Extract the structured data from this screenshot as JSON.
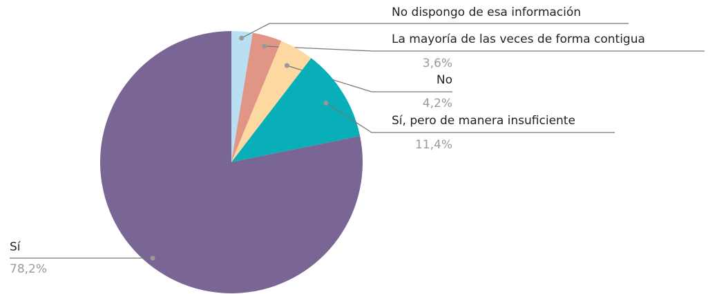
{
  "chart_data": {
    "type": "pie",
    "categories": [
      "No dispongo de esa información",
      "La mayoría de las veces de forma contigua",
      "No",
      "Sí, pero de manera insuficiente",
      "Sí"
    ],
    "values": [
      2.6,
      3.6,
      4.2,
      11.4,
      78.2
    ],
    "value_labels": [
      null,
      "3,6%",
      "4,2%",
      "11,4%",
      "78,2%"
    ],
    "colors": [
      "#b8e0f2",
      "#e09585",
      "#fdd8a0",
      "#08aeb8",
      "#7a6694"
    ]
  }
}
